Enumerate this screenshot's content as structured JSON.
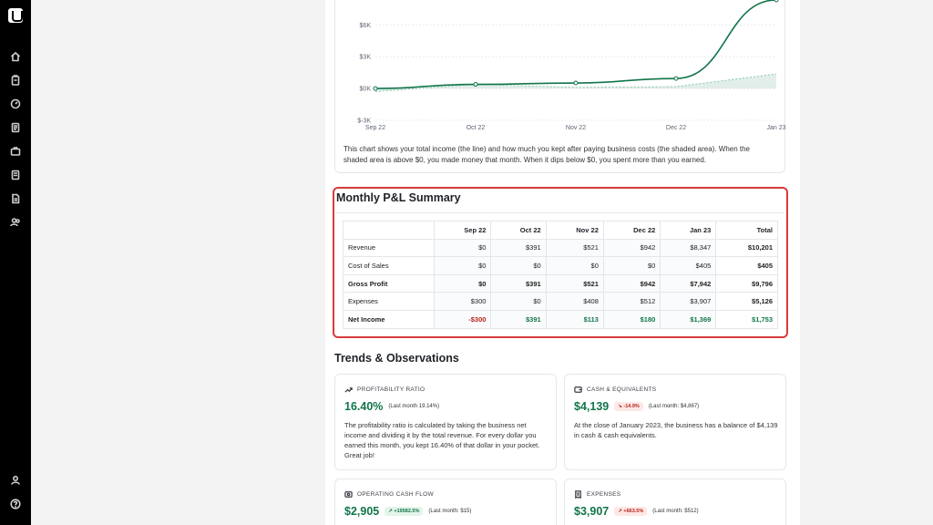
{
  "colors": {
    "accent": "#11754a",
    "negative": "#b42318",
    "highlight_border": "#d93a3a"
  },
  "sidebar": {
    "icons": [
      "logo-icon",
      "home-icon",
      "clipboard-icon",
      "gauge-icon",
      "document-icon",
      "briefcase-icon",
      "report-icon",
      "file-icon",
      "users-icon",
      "user-icon",
      "help-icon"
    ]
  },
  "chart": {
    "caption": "This chart shows your total income (the line) and how much you kept after paying business costs (the shaded area). When the shaded area is above $0, you made money that month. When it dips below $0, you spent more than you earned."
  },
  "chart_data": {
    "type": "line",
    "x": [
      "Sep 22",
      "Oct 22",
      "Nov 22",
      "Dec 22",
      "Jan 23"
    ],
    "ytick_labels": [
      "$-3K",
      "$0K",
      "$3K",
      "$6K"
    ],
    "yticks": [
      -3000,
      0,
      3000,
      6000
    ],
    "series": [
      {
        "values": [
          0,
          391,
          521,
          942,
          8347
        ]
      },
      {
        "values": [
          -300,
          391,
          113,
          180,
          1369
        ]
      }
    ],
    "ylim": [
      -3000,
      8347
    ]
  },
  "summary": {
    "title": "Monthly P&L Summary",
    "columns": [
      "",
      "Sep 22",
      "Oct 22",
      "Nov 22",
      "Dec 22",
      "Jan 23",
      "Total"
    ],
    "rows": [
      {
        "label": "Revenue",
        "values": [
          "$0",
          "$391",
          "$521",
          "$942",
          "$8,347",
          "$10,201"
        ]
      },
      {
        "label": "Cost of Sales",
        "values": [
          "$0",
          "$0",
          "$0",
          "$0",
          "$405",
          "$405"
        ]
      },
      {
        "label": "Gross Profit",
        "values": [
          "$0",
          "$391",
          "$521",
          "$942",
          "$7,942",
          "$9,796"
        ]
      },
      {
        "label": "Expenses",
        "values": [
          "$300",
          "$0",
          "$408",
          "$512",
          "$3,907",
          "$5,126"
        ]
      },
      {
        "label": "Net Income",
        "values": [
          "-$300",
          "$391",
          "$113",
          "$180",
          "$1,369",
          "$1,753"
        ]
      }
    ]
  },
  "trends": {
    "title": "Trends & Observations",
    "profitability": {
      "label": "PROFITABILITY RATIO",
      "value": "16.40%",
      "last": "(Last month 19.14%)",
      "desc": "The profitability ratio is calculated by taking the business net income and dividing it by the total revenue. For every dollar you earned this month, you kept 16.40% of that dollar in your pocket. Great job!"
    },
    "cash": {
      "label": "CASH & EQUIVALENTS",
      "value": "$4,139",
      "badge": "↘ -14.9%",
      "last": "(Last month: $4,867)",
      "desc": "At the close of January 2023, the business has a balance of $4,139 in cash & cash equivalents."
    },
    "ocf": {
      "label": "OPERATING CASH FLOW",
      "value": "$2,905",
      "badge": "↗ +19582.5%",
      "last": "(Last month: $15)"
    },
    "expenses": {
      "label": "EXPENSES",
      "value": "$3,907",
      "badge": "↗ +663.5%",
      "last": "(Last month: $512)"
    }
  }
}
